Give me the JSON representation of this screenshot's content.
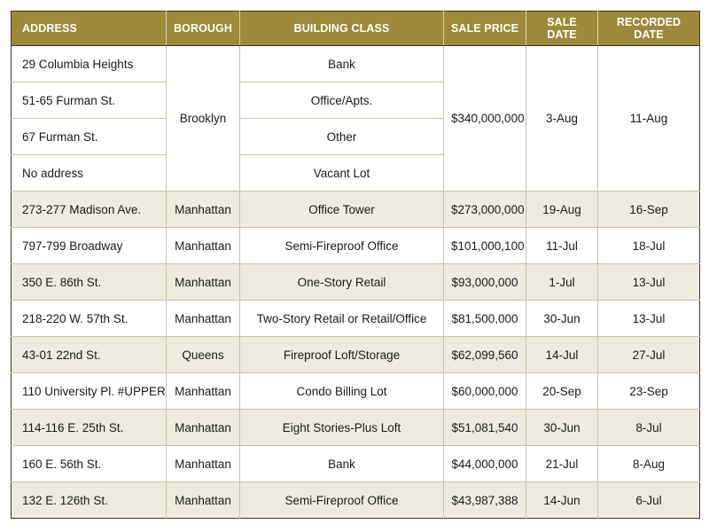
{
  "table": {
    "headers": {
      "address": "ADDRESS",
      "borough": "BOROUGH",
      "building_class": "BUILDING CLASS",
      "sale_price": "SALE PRICE",
      "sale_date": "SALE DATE",
      "recorded_date": "RECORDED DATE"
    },
    "group": {
      "borough": "Brooklyn",
      "sale_price": "$340,000,000",
      "sale_date": "3-Aug",
      "recorded_date": "11-Aug",
      "items": [
        {
          "address": "29 Columbia Heights",
          "building_class": "Bank"
        },
        {
          "address": "51-65 Furman St.",
          "building_class": "Office/Apts."
        },
        {
          "address": "67 Furman St.",
          "building_class": "Other"
        },
        {
          "address": "No address",
          "building_class": "Vacant Lot"
        }
      ]
    },
    "rows": [
      {
        "address": "273-277 Madison Ave.",
        "borough": "Manhattan",
        "building_class": "Office Tower",
        "sale_price": "$273,000,000",
        "sale_date": "19-Aug",
        "recorded_date": "16-Sep"
      },
      {
        "address": "797-799 Broadway",
        "borough": "Manhattan",
        "building_class": "Semi-Fireproof Office",
        "sale_price": "$101,000,100",
        "sale_date": "11-Jul",
        "recorded_date": "18-Jul"
      },
      {
        "address": "350 E. 86th St.",
        "borough": "Manhattan",
        "building_class": "One-Story Retail",
        "sale_price": "$93,000,000",
        "sale_date": "1-Jul",
        "recorded_date": "13-Jul"
      },
      {
        "address": "218-220 W. 57th St.",
        "borough": "Manhattan",
        "building_class": "Two-Story Retail or Retail/Office",
        "sale_price": "$81,500,000",
        "sale_date": "30-Jun",
        "recorded_date": "13-Jul"
      },
      {
        "address": "43-01 22nd St.",
        "borough": "Queens",
        "building_class": "Fireproof Loft/Storage",
        "sale_price": "$62,099,560",
        "sale_date": "14-Jul",
        "recorded_date": "27-Jul"
      },
      {
        "address": "110 University Pl. #UPPER",
        "borough": "Manhattan",
        "building_class": "Condo Billing Lot",
        "sale_price": "$60,000,000",
        "sale_date": "20-Sep",
        "recorded_date": "23-Sep"
      },
      {
        "address": "114-116 E. 25th St.",
        "borough": "Manhattan",
        "building_class": "Eight Stories-Plus Loft",
        "sale_price": "$51,081,540",
        "sale_date": "30-Jun",
        "recorded_date": "8-Jul"
      },
      {
        "address": "160 E. 56th St.",
        "borough": "Manhattan",
        "building_class": "Bank",
        "sale_price": "$44,000,000",
        "sale_date": "21-Jul",
        "recorded_date": "8-Aug"
      },
      {
        "address": "132 E. 126th St.",
        "borough": "Manhattan",
        "building_class": "Semi-Fireproof Office",
        "sale_price": "$43,987,388",
        "sale_date": "14-Jun",
        "recorded_date": "6-Jul"
      }
    ]
  },
  "colors": {
    "header_bg": "#9c8a3a",
    "header_text": "#ffffff",
    "shaded_row": "#eeece0",
    "plain_row": "#ffffff"
  }
}
